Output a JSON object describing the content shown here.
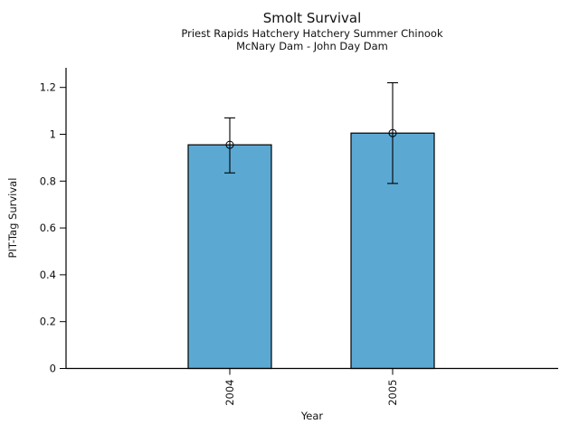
{
  "chart_data": {
    "type": "bar",
    "title": "Smolt Survival",
    "subtitle": [
      "Priest Rapids Hatchery Hatchery Summer Chinook",
      "McNary Dam - John Day Dam"
    ],
    "categories": [
      "2004",
      "2005"
    ],
    "values": [
      0.955,
      1.005
    ],
    "error_low": [
      0.835,
      0.79
    ],
    "error_high": [
      1.07,
      1.22
    ],
    "xlabel": "Year",
    "ylabel": "PIT-Tag Survival",
    "ylim": [
      0,
      1.28
    ],
    "yticks": [
      0,
      0.2,
      0.4,
      0.6,
      0.8,
      1,
      1.2
    ],
    "ytick_labels": [
      "0",
      "0.2",
      "0.4",
      "0.6",
      "0.8",
      "1",
      "1.2"
    ],
    "grid": false,
    "legend": null,
    "marker": "open-circle",
    "bar_color": "#5BA9D3",
    "bar_edge_color": "#000000",
    "error_color": "#000000",
    "axis_color": "#000000",
    "background_color": "#ffffff"
  }
}
